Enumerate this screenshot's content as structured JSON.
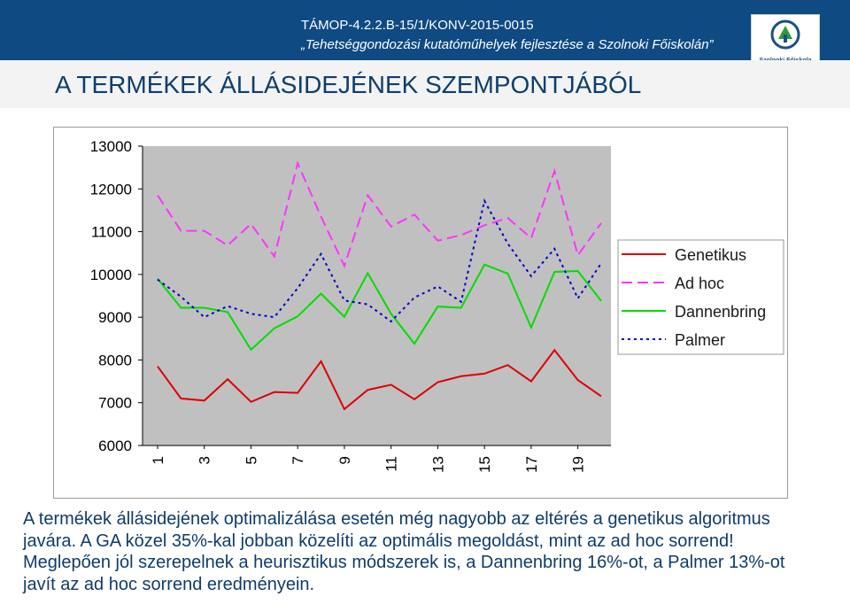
{
  "header": {
    "project_code": "TÁMOP-4.2.2.B-15/1/KONV-2015-0015",
    "project_title": "„Tehetséggondozási kutatóműhelyek fejlesztése a Szolnoki Főiskolán”",
    "logo_text": "Szolnoki Főiskola",
    "background_color": "#0f4a82"
  },
  "page_title": "A TERMÉKEK ÁLLÁSIDEJÉNEK SZEMPONTJÁBÓL",
  "chart_data": {
    "type": "line",
    "x": [
      1,
      2,
      3,
      4,
      5,
      6,
      7,
      8,
      9,
      10,
      11,
      12,
      13,
      14,
      15,
      16,
      17,
      18,
      19,
      20
    ],
    "x_tick_labels": [
      "1",
      "3",
      "5",
      "7",
      "9",
      "11",
      "13",
      "15",
      "17",
      "19"
    ],
    "ylim": [
      6000,
      13000
    ],
    "y_ticks": [
      6000,
      7000,
      8000,
      9000,
      10000,
      11000,
      12000,
      13000
    ],
    "y_tick_labels": [
      "6000",
      "7000",
      "8000",
      "9000",
      "10000",
      "11000",
      "12000",
      "13000"
    ],
    "plot_background": "#c0c0c0",
    "legend_position": "right",
    "series": [
      {
        "name": "Genetikus",
        "color": "#dd0000",
        "dash": "solid",
        "values": [
          7850,
          7100,
          7050,
          7550,
          7020,
          7250,
          7230,
          7970,
          6850,
          7300,
          7420,
          7080,
          7480,
          7620,
          7680,
          7880,
          7500,
          8230,
          7530,
          7150
        ]
      },
      {
        "name": "Ad hoc",
        "color": "#ff33ff",
        "dash": "dashed",
        "values": [
          11850,
          11020,
          11020,
          10680,
          11180,
          10420,
          12600,
          11350,
          10200,
          11850,
          11120,
          11400,
          10790,
          10920,
          11150,
          11320,
          10850,
          12420,
          10450,
          11200
        ]
      },
      {
        "name": "Dannenbring",
        "color": "#00dd00",
        "dash": "solid",
        "values": [
          9900,
          9220,
          9220,
          9120,
          8240,
          8740,
          9020,
          9550,
          9010,
          10030,
          9080,
          8380,
          9250,
          9220,
          10230,
          10020,
          8760,
          10060,
          10080,
          9380
        ]
      },
      {
        "name": "Palmer",
        "color": "#0000cc",
        "dash": "dotted",
        "values": [
          9880,
          9480,
          9000,
          9260,
          9080,
          9000,
          9680,
          10480,
          9390,
          9300,
          8900,
          9460,
          9720,
          9360,
          11720,
          10720,
          9960,
          10600,
          9440,
          10260
        ]
      }
    ]
  },
  "caption": "A termékek állásidejének optimalizálása esetén még nagyobb az eltérés a genetikus algoritmus javára. A GA közel 35%-kal jobban közelíti az optimális megoldást, mint az ad hoc sorrend! Meglepően jól szerepelnek a heurisztikus módszerek is, a Dannenbring 16%-ot, a Palmer 13%-ot javít az ad hoc sorrend eredményein."
}
